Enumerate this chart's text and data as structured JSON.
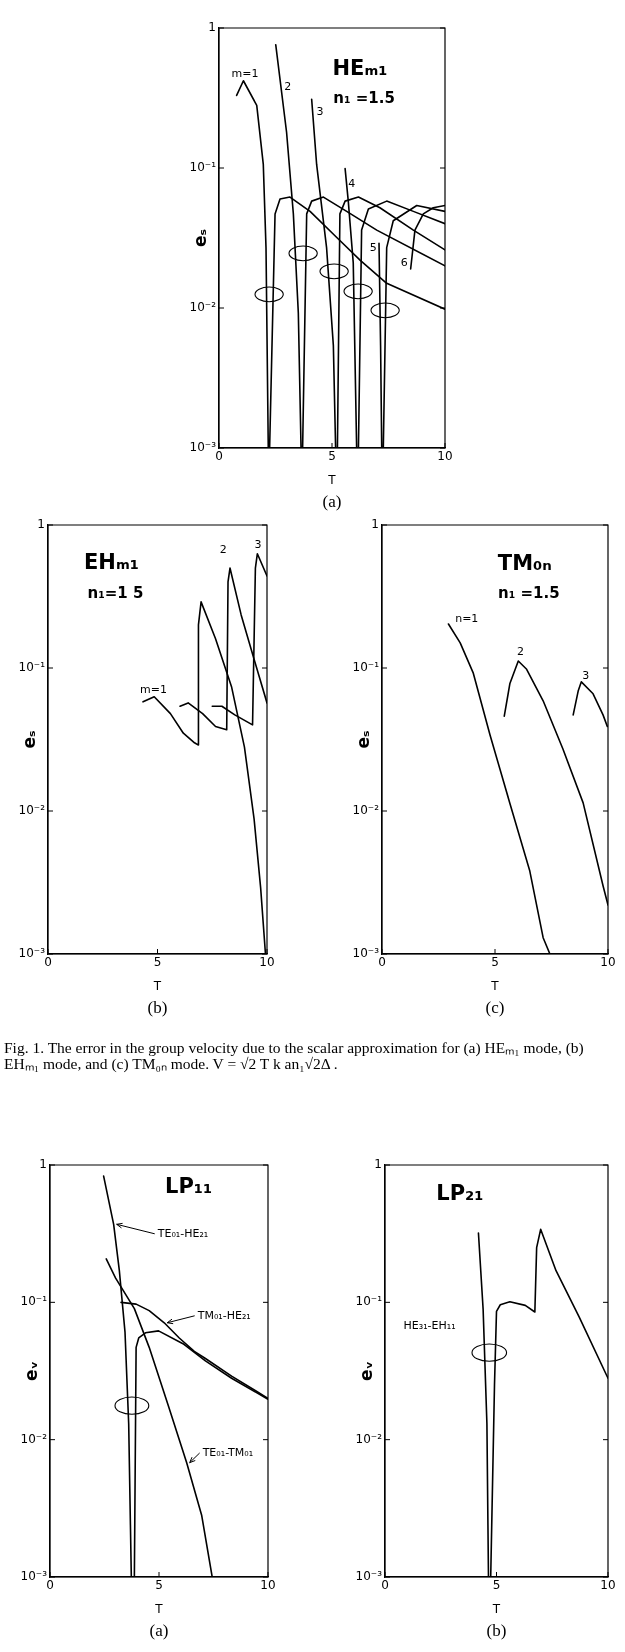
{
  "chart_data": [
    {
      "type": "line",
      "title": "HEₘ₁",
      "subtitle": "(a)",
      "xlabel": "T",
      "ylabel": "eₛ",
      "xlim": [
        0,
        10
      ],
      "ylim": [
        0.001,
        1
      ],
      "xticks": [
        0,
        5,
        10
      ],
      "yticks": [
        {
          "value": 0.001,
          "label": "10⁻³"
        },
        {
          "value": 0.01,
          "label": "10⁻²"
        },
        {
          "value": 0.1,
          "label": "10⁻¹"
        },
        {
          "value": 1,
          "label": "1"
        }
      ],
      "log": "y",
      "marker": "none",
      "annotations": [
        "n₁ =1.5"
      ],
      "series": [
        {
          "name": "m=1",
          "color": "#000000",
          "x": [
            0.78,
            1.08,
            1.67,
            1.96,
            2.08,
            2.18,
            2.24,
            2.48,
            2.7,
            3.14,
            4.03,
            5.2,
            6.24,
            7.42,
            10
          ],
          "values": [
            0.33,
            0.42,
            0.28,
            0.106,
            0.027,
            0.001,
            0.001,
            0.047,
            0.06,
            0.062,
            0.049,
            0.032,
            0.022,
            0.015,
            0.0098
          ]
        },
        {
          "name": "2",
          "color": "#000000",
          "x": [
            2.51,
            2.99,
            3.29,
            3.51,
            3.63,
            3.7,
            3.88,
            4.1,
            4.62,
            5.65,
            6.98,
            10
          ],
          "values": [
            0.76,
            0.18,
            0.047,
            0.0092,
            0.001,
            0.001,
            0.047,
            0.058,
            0.062,
            0.049,
            0.036,
            0.02
          ]
        },
        {
          "name": "3",
          "color": "#000000",
          "x": [
            4.1,
            4.32,
            4.76,
            5.06,
            5.16,
            5.24,
            5.35,
            5.58,
            6.17,
            7.12,
            8.6,
            10
          ],
          "values": [
            0.31,
            0.106,
            0.027,
            0.0054,
            0.001,
            0.001,
            0.047,
            0.058,
            0.062,
            0.052,
            0.036,
            0.026
          ]
        },
        {
          "name": "4",
          "color": "#000000",
          "x": [
            5.58,
            5.72,
            5.94,
            6.09,
            6.17,
            6.31,
            6.61,
            7.42,
            8.6,
            10
          ],
          "values": [
            0.099,
            0.058,
            0.021,
            0.001,
            0.001,
            0.036,
            0.051,
            0.058,
            0.049,
            0.04
          ]
        },
        {
          "name": "5",
          "color": "#000000",
          "x": [
            7.08,
            7.15,
            7.2,
            7.27,
            7.42,
            7.71,
            8.75,
            10
          ],
          "values": [
            0.029,
            0.0054,
            0.001,
            0.001,
            0.027,
            0.042,
            0.054,
            0.049
          ]
        },
        {
          "name": "6",
          "color": "#000000",
          "x": [
            8.48,
            8.67,
            9.04,
            9.48,
            10
          ],
          "values": [
            0.019,
            0.036,
            0.047,
            0.052,
            0.054
          ]
        }
      ]
    },
    {
      "type": "line",
      "title": "EHₘ₁",
      "subtitle": "(b)",
      "xlabel": "T",
      "ylabel": "eₛ",
      "xlim": [
        0,
        10
      ],
      "ylim": [
        0.001,
        1
      ],
      "xticks": [
        0,
        5,
        10
      ],
      "yticks": [
        {
          "value": 0.001,
          "label": "10⁻³"
        },
        {
          "value": 0.01,
          "label": "10⁻²"
        },
        {
          "value": 0.1,
          "label": "10⁻¹"
        },
        {
          "value": 1,
          "label": "1"
        }
      ],
      "log": "y",
      "marker": "none",
      "annotations": [
        "n₁=1 5"
      ],
      "series": [
        {
          "name": "m=1",
          "color": "#000000",
          "x": [
            4.34,
            4.85,
            5.59,
            6.18,
            6.69,
            6.85,
            6.87,
            6.99,
            7.65,
            8.38,
            8.97,
            9.41,
            9.71,
            9.93
          ],
          "values": [
            0.058,
            0.063,
            0.048,
            0.035,
            0.03,
            0.029,
            0.2,
            0.29,
            0.16,
            0.074,
            0.028,
            0.0088,
            0.0029,
            0.001
          ]
        },
        {
          "name": "2",
          "color": "#000000",
          "x": [
            6.03,
            6.4,
            7.06,
            7.65,
            8.16,
            8.22,
            8.31,
            8.82,
            9.41,
            10
          ],
          "values": [
            0.054,
            0.057,
            0.048,
            0.039,
            0.037,
            0.4,
            0.5,
            0.235,
            0.115,
            0.057
          ]
        },
        {
          "name": "3",
          "color": "#000000",
          "x": [
            7.5,
            7.94,
            8.53,
            9.34,
            9.47,
            9.56,
            10
          ],
          "values": [
            0.054,
            0.054,
            0.047,
            0.04,
            0.5,
            0.63,
            0.44
          ]
        }
      ]
    },
    {
      "type": "line",
      "title": "TM₀ₙ",
      "subtitle": "(c)",
      "xlabel": "T",
      "ylabel": "eₛ",
      "xlim": [
        0,
        10
      ],
      "ylim": [
        0.001,
        1
      ],
      "xticks": [
        0,
        5,
        10
      ],
      "yticks": [
        {
          "value": 0.001,
          "label": "10⁻³"
        },
        {
          "value": 0.01,
          "label": "10⁻²"
        },
        {
          "value": 0.1,
          "label": "10⁻¹"
        },
        {
          "value": 1,
          "label": "1"
        }
      ],
      "log": "y",
      "marker": "none",
      "annotations": [
        "n₁ =1.5"
      ],
      "series": [
        {
          "name": "n=1",
          "color": "#000000",
          "x": [
            2.94,
            3.46,
            4.04,
            4.78,
            5.66,
            6.54,
            7.13,
            7.43
          ],
          "values": [
            0.203,
            0.15,
            0.092,
            0.034,
            0.0113,
            0.0038,
            0.0013,
            0.001
          ]
        },
        {
          "name": "2",
          "color": "#000000",
          "x": [
            5.41,
            5.66,
            6.03,
            6.4,
            7.13,
            8.01,
            8.9,
            9.78,
            10
          ],
          "values": [
            0.046,
            0.078,
            0.112,
            0.098,
            0.059,
            0.027,
            0.0114,
            0.003,
            0.0022
          ]
        },
        {
          "name": "3",
          "color": "#000000",
          "x": [
            8.46,
            8.68,
            8.82,
            9.34,
            9.78,
            9.97
          ],
          "values": [
            0.047,
            0.069,
            0.08,
            0.066,
            0.047,
            0.039
          ]
        }
      ]
    },
    {
      "type": "other",
      "annotations": [
        "Fig. 1.  The error in the group velocity due to the scalar approximation for (a) HEₘ₁ mode, (b) EHₘ₁ mode, and (c) TM₀ₙ mode. V = √2 T k an₁√2Δ ."
      ]
    },
    {
      "type": "line",
      "title": "LP₁₁",
      "subtitle": "(a)",
      "xlabel": "T",
      "ylabel": "eᵥ",
      "xlim": [
        0,
        10
      ],
      "ylim": [
        0.001,
        1
      ],
      "xticks": [
        0,
        5,
        10
      ],
      "yticks": [
        {
          "value": 0.001,
          "label": "10⁻³"
        },
        {
          "value": 0.01,
          "label": "10⁻²"
        },
        {
          "value": 0.1,
          "label": "10⁻¹"
        },
        {
          "value": 1,
          "label": "1"
        }
      ],
      "log": "y",
      "marker": "none",
      "annotations": [
        {
          "text": "TE₀₁-HE₂₁",
          "x": 2.92,
          "y": 0.37
        },
        {
          "text": "TM₀₁-HE₂₁",
          "x": 5.24,
          "y": 0.071
        },
        {
          "text": "TE₀₁-TM₀₁",
          "x": 6.27,
          "y": 0.0068
        }
      ],
      "series": [
        {
          "color": "#000000",
          "x": [
            2.46,
            2.92,
            3.18,
            3.44,
            3.61,
            3.73,
            3.87,
            3.95,
            4.07,
            4.38,
            4.98,
            6.1,
            7.13,
            8.33,
            10
          ],
          "values": [
            0.83,
            0.37,
            0.171,
            0.061,
            0.013,
            0.001,
            0.001,
            0.047,
            0.055,
            0.06,
            0.062,
            0.05,
            0.0375,
            0.028,
            0.0197
          ]
        },
        {
          "color": "#000000",
          "x": [
            3.26,
            3.95,
            4.55,
            5.24,
            5.93,
            6.62,
            7.13,
            8.33,
            10
          ],
          "values": [
            0.1,
            0.097,
            0.087,
            0.071,
            0.055,
            0.044,
            0.039,
            0.029,
            0.02
          ]
        },
        {
          "color": "#000000",
          "x": [
            2.58,
            3.01,
            3.87,
            4.55,
            5.41,
            6.27,
            6.96,
            7.44
          ],
          "values": [
            0.207,
            0.15,
            0.09,
            0.047,
            0.018,
            0.0068,
            0.0028,
            0.001
          ]
        }
      ]
    },
    {
      "type": "line",
      "title": "LP₂₁",
      "subtitle": "(b)",
      "xlabel": "T",
      "ylabel": "eᵥ",
      "xlim": [
        0,
        10
      ],
      "ylim": [
        0.001,
        1
      ],
      "xticks": [
        0,
        5,
        10
      ],
      "yticks": [
        {
          "value": 0.001,
          "label": "10⁻³"
        },
        {
          "value": 0.01,
          "label": "10⁻²"
        },
        {
          "value": 0.1,
          "label": "10⁻¹"
        },
        {
          "value": 1,
          "label": "1"
        }
      ],
      "log": "y",
      "marker": "none",
      "series": [
        {
          "name": "HE₃₁-EH₁₁",
          "color": "#000000",
          "x": [
            4.19,
            4.4,
            4.57,
            4.64,
            4.74,
            4.91,
            5.0,
            5.17,
            5.6,
            6.29,
            6.72,
            6.8,
            6.98,
            7.67,
            8.71,
            10
          ],
          "values": [
            0.32,
            0.089,
            0.0131,
            0.001,
            0.001,
            0.025,
            0.086,
            0.096,
            0.101,
            0.095,
            0.085,
            0.25,
            0.34,
            0.17,
            0.078,
            0.028
          ]
        }
      ]
    }
  ]
}
